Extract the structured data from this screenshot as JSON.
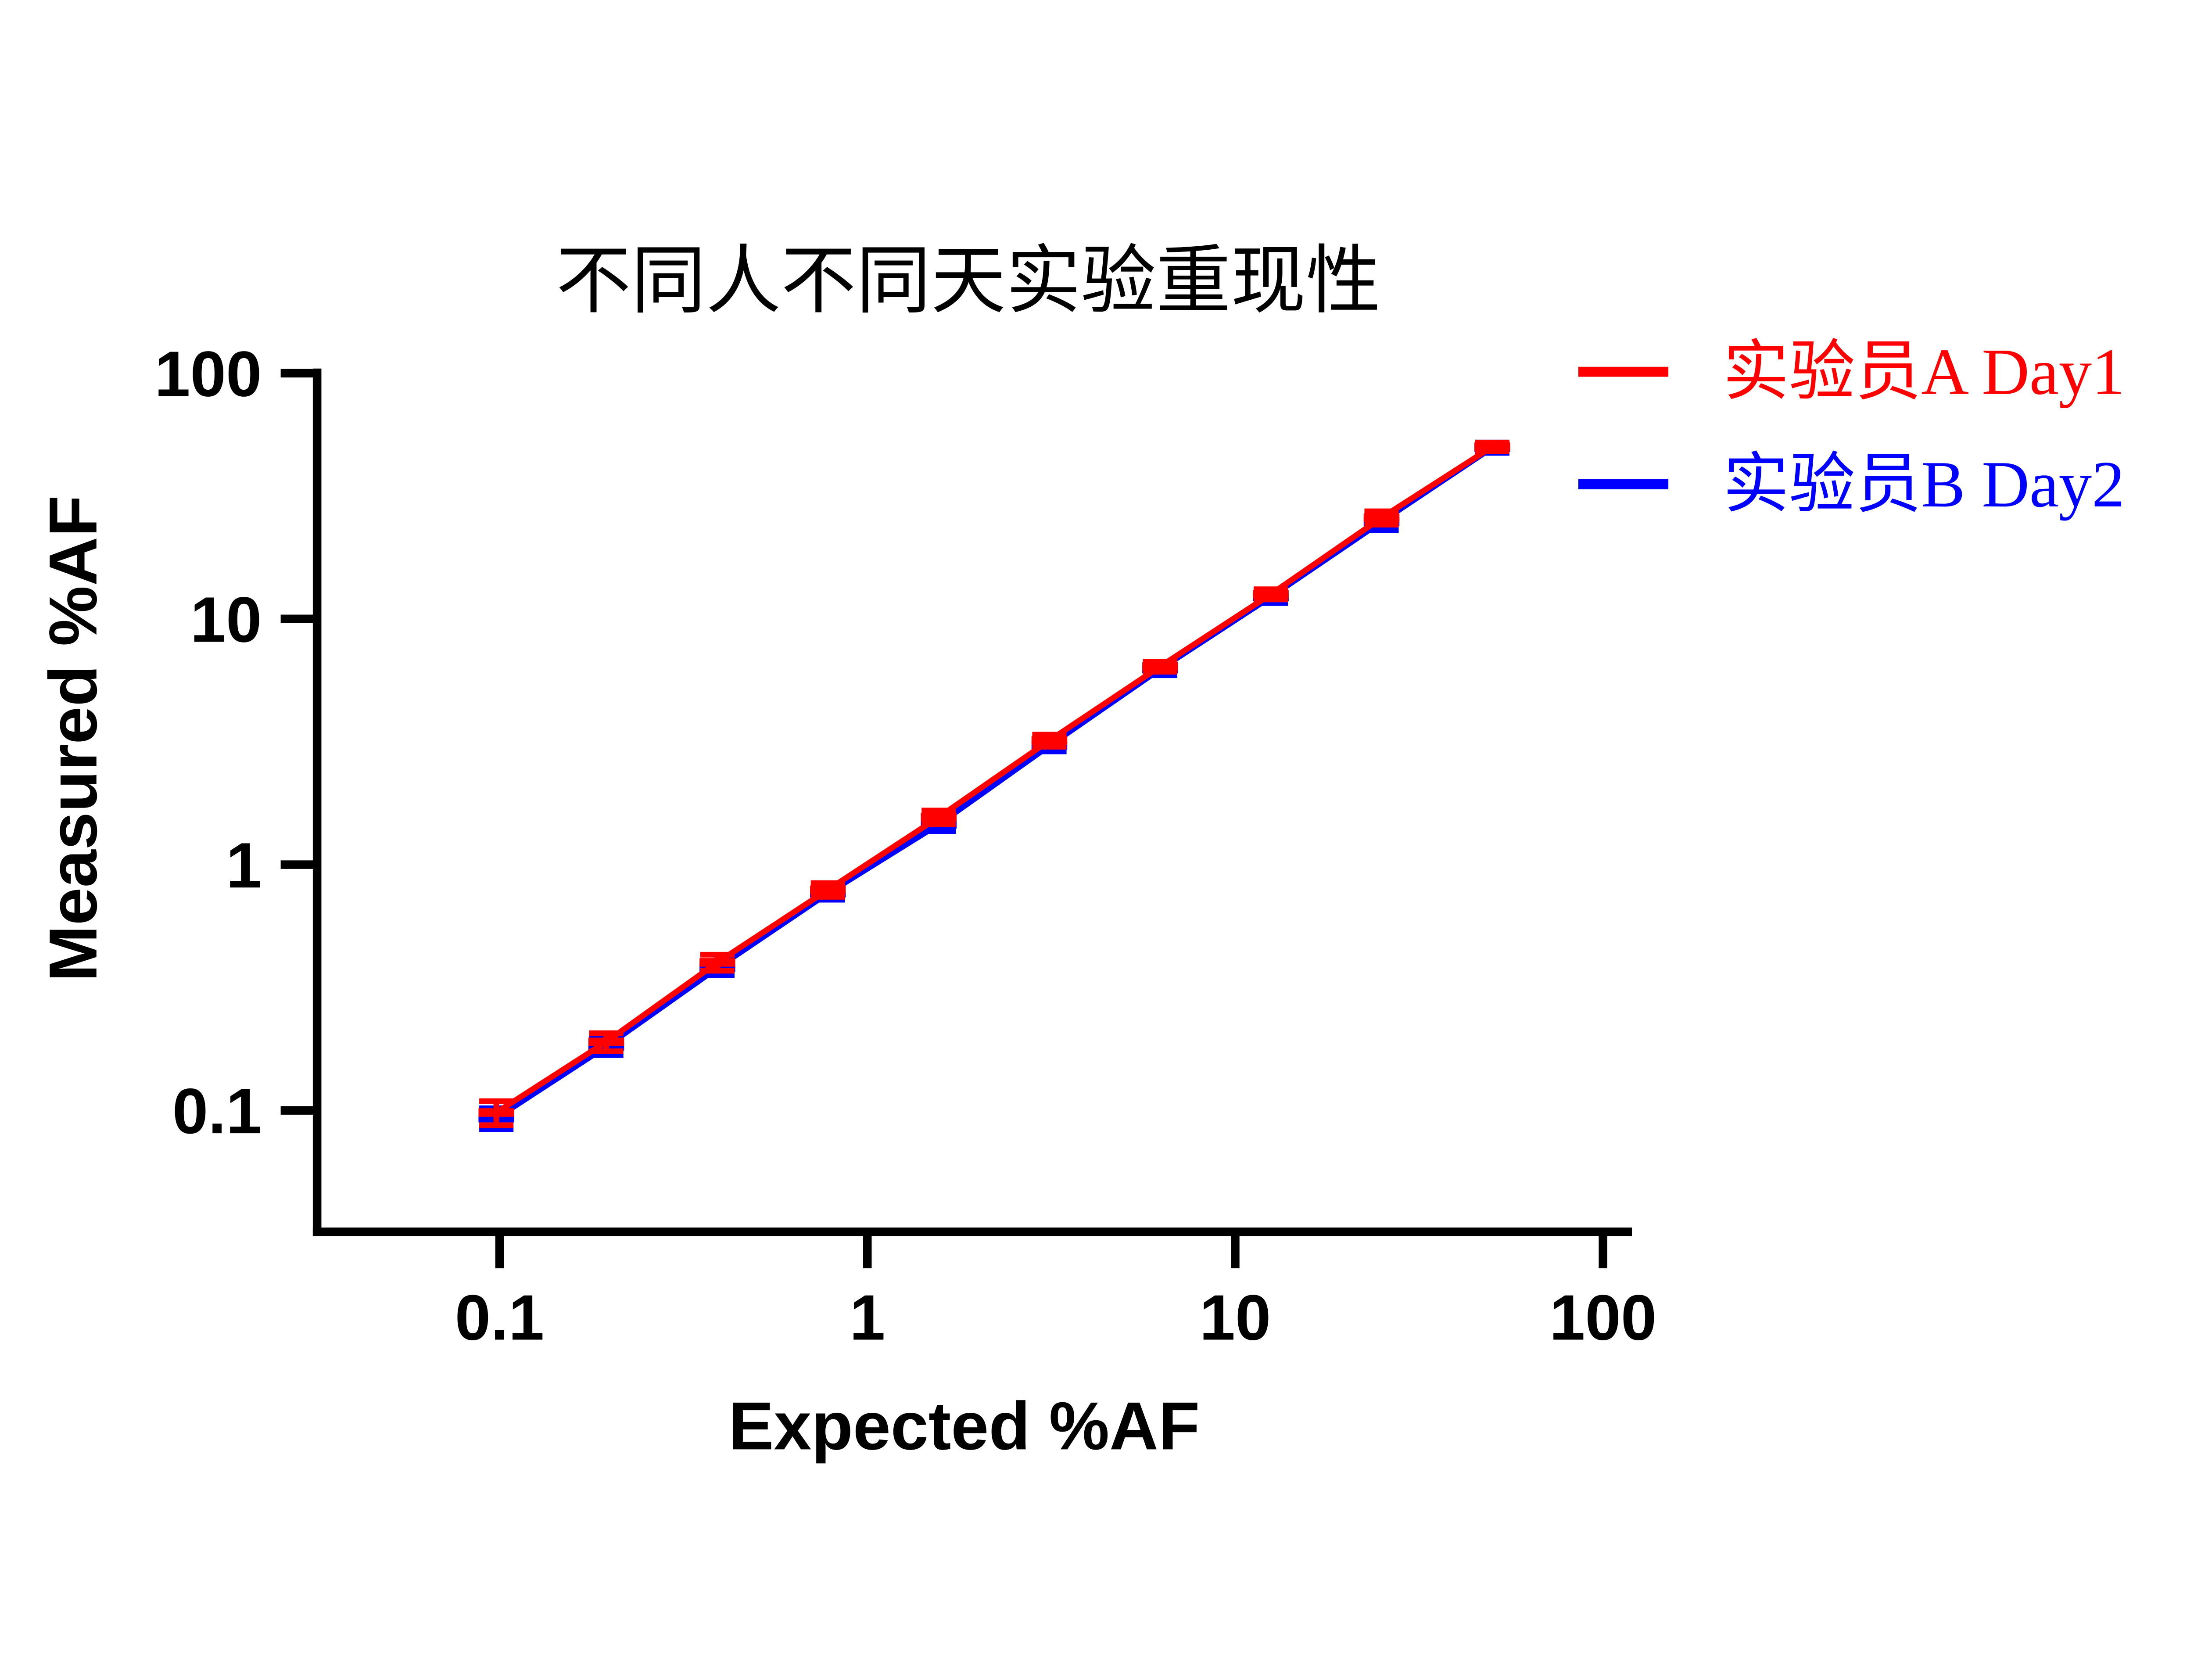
{
  "chart_data": {
    "type": "line",
    "title": "不同人不同天实验重现性",
    "xlabel": "Expected %AF",
    "ylabel": "Measured %AF",
    "x_scale": "log",
    "y_scale": "log",
    "xlim": [
      0.032,
      120
    ],
    "ylim": [
      0.032,
      100
    ],
    "x_ticks": [
      {
        "label": "0.1",
        "value": 0.1
      },
      {
        "label": "1",
        "value": 1
      },
      {
        "label": "10",
        "value": 10
      },
      {
        "label": "100",
        "value": 100
      }
    ],
    "y_ticks": [
      {
        "label": "100",
        "value": 100
      },
      {
        "label": "10",
        "value": 10
      },
      {
        "label": "1",
        "value": 1
      },
      {
        "label": "0.1",
        "value": 0.1
      }
    ],
    "grid": false,
    "legend_position": "outside-upper-right",
    "x": [
      0.098,
      0.195,
      0.391,
      0.781,
      1.563,
      3.125,
      6.25,
      12.5,
      25,
      50
    ],
    "series": [
      {
        "name": "实验员A Day1",
        "color": "#ff0000",
        "marker": "dash",
        "values": [
          0.098,
          0.19,
          0.4,
          0.79,
          1.56,
          3.2,
          6.4,
          12.6,
          25.8,
          50.2
        ],
        "errors": [
          0.011,
          0.016,
          0.03,
          0.05,
          0.1,
          0.18,
          0.3,
          0.6,
          1.6,
          2.0
        ]
      },
      {
        "name": "实验员B Day2",
        "color": "#0000ff",
        "marker": "dash",
        "values": [
          0.093,
          0.182,
          0.38,
          0.765,
          1.46,
          3.05,
          6.25,
          12.3,
          24.9,
          49.8
        ],
        "errors": [
          0.009,
          0.014,
          0.025,
          0.045,
          0.09,
          0.16,
          0.35,
          0.7,
          1.9,
          2.4
        ]
      }
    ]
  }
}
